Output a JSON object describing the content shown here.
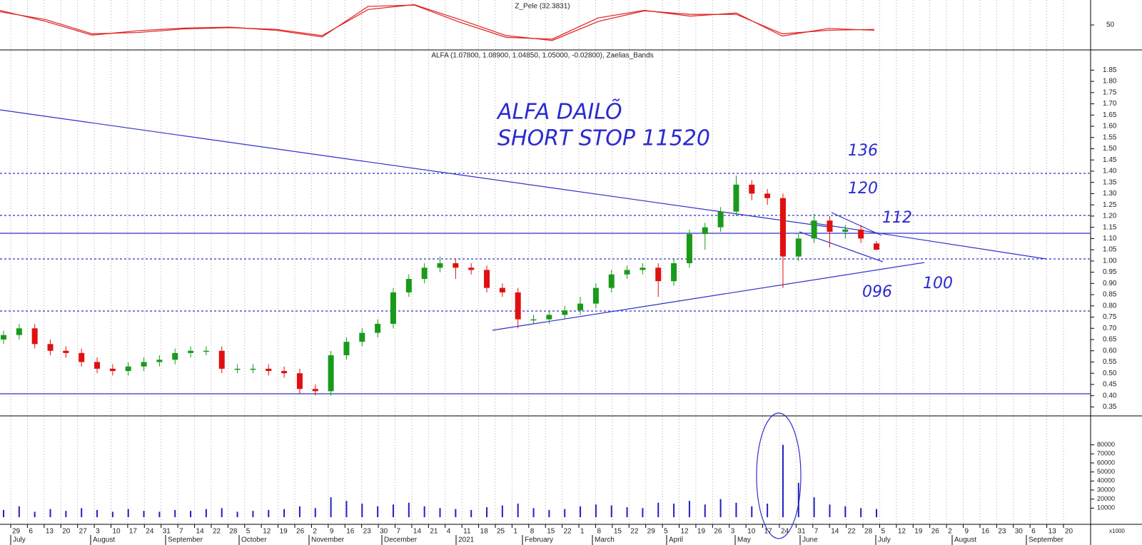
{
  "chart_data": {
    "type": "candlestick",
    "indicator_title": "Z_Pele (32.3831)",
    "title": "ALFA (1.07800, 1.08900, 1.04850, 1.05000, -0.02800), Zaelias_Bands",
    "annotations": [
      "ALFA DAILÕ",
      "SHORT STOP 11520",
      "136",
      "120",
      "112",
      "096",
      "100"
    ],
    "indicator": {
      "ylim": [
        0,
        100
      ],
      "yticks": [
        50
      ],
      "series": [
        {
          "color": "#e02020",
          "values": [
            83,
            58,
            27,
            37,
            43,
            45,
            38,
            23,
            92,
            95,
            56,
            22,
            18,
            66,
            83,
            70,
            77,
            25,
            42,
            38
          ]
        },
        {
          "color": "#e02020",
          "values": [
            80,
            62,
            30,
            33,
            41,
            44,
            40,
            26,
            85,
            96,
            62,
            26,
            15,
            58,
            82,
            74,
            74,
            30,
            38,
            40
          ]
        }
      ]
    },
    "ylim": [
      0.31,
      1.94
    ],
    "yticks": [
      0.35,
      {
        "value": 0.4,
        "label": "0.40"
      },
      0.45,
      {
        "value": 0.5,
        "label": "0.50"
      },
      0.55,
      {
        "value": 0.6,
        "label": "0.60"
      },
      0.65,
      {
        "value": 0.7,
        "label": "0.70"
      },
      0.75,
      {
        "value": 0.8,
        "label": "0.80"
      },
      0.85,
      {
        "value": 0.9,
        "label": "0.90"
      },
      0.95,
      {
        "value": 1,
        "label": "1.00"
      },
      1.05,
      {
        "value": 1.1,
        "label": "1.10"
      },
      1.15,
      {
        "value": 1.2,
        "label": "1.20"
      },
      1.25,
      {
        "value": 1.3,
        "label": "1.30"
      },
      1.35,
      {
        "value": 1.4,
        "label": "1.40"
      },
      1.45,
      {
        "value": 1.5,
        "label": "1.50"
      },
      1.55,
      {
        "value": 1.6,
        "label": "1.60"
      },
      1.65,
      {
        "value": 1.7,
        "label": "1.70"
      },
      1.75,
      {
        "value": 1.8,
        "label": "1.80"
      },
      1.85
    ],
    "up_color": "#1a9a1a",
    "down_color": "#e01010",
    "open": [
      0.65,
      0.67,
      0.7,
      0.63,
      0.6,
      0.59,
      0.55,
      0.52,
      0.51,
      0.53,
      0.55,
      0.56,
      0.59,
      0.6,
      0.6,
      0.52,
      0.52,
      0.52,
      0.51,
      0.5,
      0.43,
      0.42,
      0.58,
      0.64,
      0.68,
      0.72,
      0.86,
      0.92,
      0.97,
      0.99,
      0.97,
      0.96,
      0.88,
      0.86,
      0.74,
      0.74,
      0.76,
      0.78,
      0.81,
      0.88,
      0.94,
      0.96,
      0.97,
      0.91,
      0.99,
      1.12,
      1.15,
      1.22,
      1.34,
      1.3,
      1.28,
      1.02,
      1.1,
      1.18,
      1.13,
      1.14,
      1.078
    ],
    "high": [
      0.69,
      0.72,
      0.72,
      0.65,
      0.62,
      0.61,
      0.57,
      0.54,
      0.55,
      0.57,
      0.58,
      0.61,
      0.62,
      0.62,
      0.62,
      0.54,
      0.54,
      0.54,
      0.53,
      0.52,
      0.45,
      0.6,
      0.66,
      0.7,
      0.74,
      0.88,
      0.94,
      0.99,
      1.02,
      1.01,
      0.99,
      0.98,
      0.9,
      0.88,
      0.76,
      0.78,
      0.8,
      0.84,
      0.9,
      0.96,
      0.98,
      0.99,
      0.99,
      1.01,
      1.14,
      1.17,
      1.24,
      1.38,
      1.36,
      1.32,
      1.3,
      1.12,
      1.21,
      1.2,
      1.16,
      1.16,
      1.089
    ],
    "low": [
      0.63,
      0.65,
      0.61,
      0.58,
      0.57,
      0.53,
      0.5,
      0.49,
      0.49,
      0.51,
      0.53,
      0.54,
      0.57,
      0.58,
      0.5,
      0.5,
      0.5,
      0.49,
      0.48,
      0.41,
      0.4,
      0.4,
      0.56,
      0.62,
      0.66,
      0.7,
      0.84,
      0.9,
      0.95,
      0.92,
      0.94,
      0.86,
      0.84,
      0.7,
      0.72,
      0.72,
      0.74,
      0.76,
      0.79,
      0.86,
      0.92,
      0.94,
      0.84,
      0.89,
      0.97,
      1.05,
      1.13,
      1.2,
      1.27,
      1.25,
      0.88,
      1.0,
      1.08,
      1.06,
      1.1,
      1.08,
      1.0485
    ],
    "close": [
      0.67,
      0.7,
      0.63,
      0.6,
      0.59,
      0.55,
      0.52,
      0.51,
      0.53,
      0.55,
      0.56,
      0.59,
      0.6,
      0.6,
      0.52,
      0.52,
      0.52,
      0.51,
      0.5,
      0.43,
      0.42,
      0.58,
      0.64,
      0.68,
      0.72,
      0.86,
      0.92,
      0.97,
      0.99,
      0.97,
      0.96,
      0.88,
      0.86,
      0.74,
      0.74,
      0.76,
      0.78,
      0.81,
      0.88,
      0.94,
      0.96,
      0.97,
      0.91,
      0.99,
      1.12,
      1.15,
      1.22,
      1.34,
      1.3,
      1.28,
      1.02,
      1.1,
      1.18,
      1.13,
      1.14,
      1.1,
      1.05
    ],
    "volume": {
      "color": "#2020c0",
      "unit": "x1000",
      "ylim": [
        0,
        112000
      ],
      "yticks": [
        10000,
        20000,
        30000,
        40000,
        50000,
        60000,
        70000,
        80000
      ],
      "values": [
        8000,
        12000,
        6000,
        9000,
        7000,
        10000,
        8000,
        6000,
        9000,
        7000,
        6000,
        8000,
        7000,
        9000,
        10000,
        6000,
        7000,
        8000,
        9000,
        12000,
        10000,
        22000,
        18000,
        15000,
        12000,
        14000,
        16000,
        12000,
        10000,
        9000,
        8000,
        11000,
        13000,
        15000,
        10000,
        8000,
        9000,
        12000,
        14000,
        13000,
        11000,
        10000,
        16000,
        15000,
        18000,
        14000,
        20000,
        16000,
        12000,
        15000,
        80000,
        38000,
        22000,
        14000,
        12000,
        10000,
        9000
      ]
    },
    "day_labels": [
      "29",
      "6",
      "13",
      "20",
      "27",
      "3",
      "10",
      "17",
      "24",
      "31",
      "7",
      "14",
      "22",
      "28",
      "5",
      "12",
      "19",
      "26",
      "2",
      "9",
      "16",
      "23",
      "30",
      "7",
      "14",
      "21",
      "4",
      "11",
      "18",
      "25",
      "1",
      "8",
      "15",
      "22",
      "1",
      "8",
      "15",
      "22",
      "29",
      "5",
      "12",
      "19",
      "26",
      "3",
      "10",
      "17",
      "24",
      "31",
      "7",
      "14",
      "22",
      "28",
      "5",
      "12",
      "19",
      "26",
      "2",
      "9",
      "16",
      "23",
      "30",
      "6",
      "13",
      "20"
    ],
    "month_labels": [
      "July",
      "August",
      "September",
      "October",
      "November",
      "December",
      "2021",
      "February",
      "March",
      "April",
      "May",
      "June",
      "July",
      "August",
      "September"
    ]
  }
}
